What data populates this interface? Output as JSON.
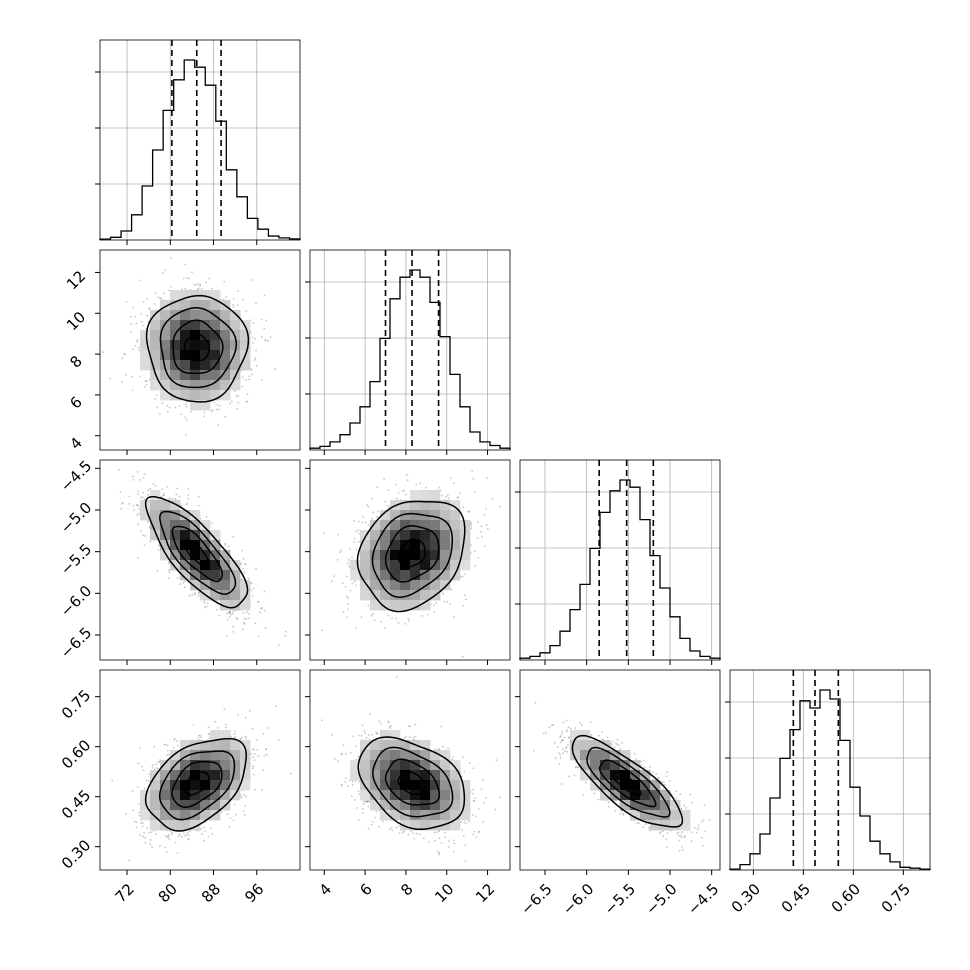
{
  "figure": {
    "type": "corner-plot",
    "colors": {
      "hist": "#000000",
      "grid": "#b0b0b0",
      "density": "#000000",
      "scatter": "#808080"
    }
  },
  "chart_data": {
    "type": "corner",
    "grid": true,
    "parameters": [
      {
        "range": [
          67.0,
          104.0
        ],
        "ticks": [
          72,
          80,
          88,
          96
        ],
        "tick_labels": [
          "72",
          "80",
          "88",
          "96"
        ],
        "quantiles": [
          80.3,
          84.9,
          89.4
        ],
        "hist": [
          0.005,
          0.015,
          0.05,
          0.14,
          0.3,
          0.5,
          0.72,
          0.89,
          1.0,
          0.96,
          0.86,
          0.66,
          0.39,
          0.24,
          0.12,
          0.06,
          0.022,
          0.012,
          0.006
        ]
      },
      {
        "range": [
          3.3,
          13.1
        ],
        "ticks": [
          4,
          6,
          8,
          10,
          12
        ],
        "tick_labels": [
          "4",
          "6",
          "8",
          "10",
          "12"
        ],
        "quantiles": [
          7.0,
          8.3,
          9.6
        ],
        "hist": [
          0.01,
          0.02,
          0.045,
          0.085,
          0.15,
          0.24,
          0.38,
          0.62,
          0.84,
          0.96,
          1.0,
          0.96,
          0.82,
          0.63,
          0.42,
          0.24,
          0.1,
          0.045,
          0.025,
          0.01
        ]
      },
      {
        "range": [
          -6.8,
          -4.4
        ],
        "ticks": [
          -6.5,
          -6.0,
          -5.5,
          -5.0,
          -4.5
        ],
        "tick_labels": [
          "−6.5",
          "−6.0",
          "−5.5",
          "−5.0",
          "−4.5"
        ],
        "quantiles": [
          -5.85,
          -5.52,
          -5.2
        ],
        "hist": [
          0.01,
          0.02,
          0.04,
          0.08,
          0.16,
          0.28,
          0.42,
          0.62,
          0.82,
          0.94,
          1.0,
          0.96,
          0.78,
          0.58,
          0.4,
          0.24,
          0.12,
          0.05,
          0.02,
          0.01
        ]
      },
      {
        "range": [
          0.23,
          0.83
        ],
        "ticks": [
          0.3,
          0.45,
          0.6,
          0.75
        ],
        "tick_labels": [
          "0.30",
          "0.45",
          "0.60",
          "0.75"
        ],
        "quantiles": [
          0.42,
          0.485,
          0.555
        ],
        "hist": [
          0.005,
          0.03,
          0.09,
          0.2,
          0.4,
          0.62,
          0.78,
          0.94,
          0.9,
          1.0,
          0.95,
          0.72,
          0.46,
          0.3,
          0.16,
          0.09,
          0.045,
          0.015,
          0.01,
          0.005
        ]
      }
    ],
    "pairs": [
      {
        "x": 0,
        "y": 1,
        "mean": [
          84.9,
          8.3
        ],
        "sd": [
          4.6,
          1.3
        ],
        "corr": 0.0
      },
      {
        "x": 0,
        "y": 2,
        "mean": [
          84.9,
          -5.52
        ],
        "sd": [
          4.6,
          0.33
        ],
        "corr": -0.78
      },
      {
        "x": 1,
        "y": 2,
        "mean": [
          8.3,
          -5.52
        ],
        "sd": [
          1.3,
          0.33
        ],
        "corr": 0.22
      },
      {
        "x": 0,
        "y": 3,
        "mean": [
          84.9,
          0.49
        ],
        "sd": [
          4.6,
          0.068
        ],
        "corr": 0.42
      },
      {
        "x": 1,
        "y": 3,
        "mean": [
          8.3,
          0.49
        ],
        "sd": [
          1.3,
          0.068
        ],
        "corr": -0.35
      },
      {
        "x": 2,
        "y": 3,
        "mean": [
          -5.52,
          0.49
        ],
        "sd": [
          0.33,
          0.068
        ],
        "corr": -0.8
      }
    ]
  }
}
